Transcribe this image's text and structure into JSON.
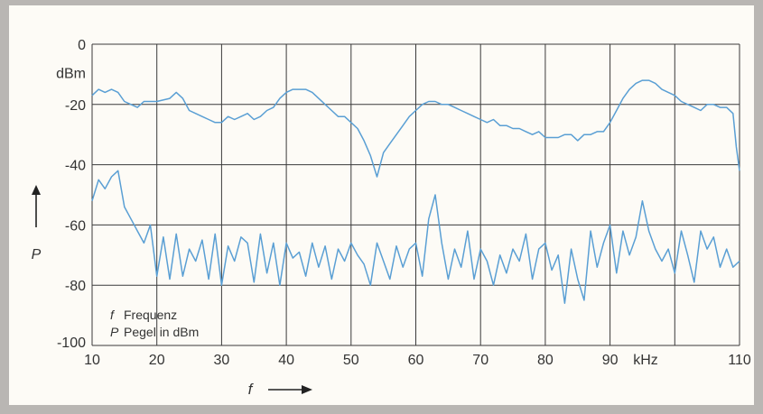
{
  "chart_data": {
    "type": "line",
    "xlim": [
      10,
      110
    ],
    "ylim": [
      -100,
      0
    ],
    "grid": true,
    "x_ticks": [
      "10",
      "20",
      "30",
      "40",
      "50",
      "60",
      "70",
      "80",
      "90",
      "kHz",
      "110"
    ],
    "y_ticks": [
      "0",
      "dBm",
      "-20",
      "-40",
      "-60",
      "-80",
      "-100"
    ],
    "xlabel": "f",
    "ylabel": "P",
    "legend": {
      "placement": "bottom-left",
      "entries": [
        {
          "symbol": "f",
          "text": "Frequenz"
        },
        {
          "symbol": "P",
          "text": "Pegel in dBm"
        }
      ]
    },
    "colors": {
      "line": "#5a9fd4",
      "grid": "#3a3a3a",
      "plot_bg": "#fdfbf6",
      "frame_bg": "#b9b6b3"
    },
    "series": [
      {
        "x": [
          10,
          11,
          12,
          13,
          14,
          15,
          16,
          17,
          18,
          19,
          20,
          22,
          23,
          24,
          25,
          26,
          27,
          28,
          29,
          30,
          31,
          32,
          33,
          34,
          35,
          36,
          37,
          38,
          39,
          40,
          41,
          42,
          43,
          44,
          45,
          46,
          47,
          48,
          49,
          50,
          51,
          52,
          53,
          54,
          55,
          56,
          57,
          58,
          59,
          60,
          61,
          62,
          63,
          64,
          65,
          66,
          67,
          68,
          69,
          70,
          71,
          72,
          73,
          74,
          75,
          76,
          77,
          78,
          79,
          80,
          81,
          82,
          83,
          84,
          85,
          86,
          87,
          88,
          89,
          90,
          91,
          92,
          93,
          94,
          95,
          96,
          97,
          98,
          99,
          100,
          101,
          102,
          103,
          104,
          105,
          106,
          107,
          108,
          109,
          109.5,
          110
        ],
        "y": [
          -17,
          -15,
          -16,
          -15,
          -16,
          -19,
          -20,
          -21,
          -19,
          -19,
          -19,
          -18,
          -16,
          -18,
          -22,
          -23,
          -24,
          -25,
          -26,
          -26,
          -24,
          -25,
          -24,
          -23,
          -25,
          -24,
          -22,
          -21,
          -18,
          -16,
          -15,
          -15,
          -15,
          -16,
          -18,
          -20,
          -22,
          -24,
          -24,
          -26,
          -28,
          -32,
          -37,
          -44,
          -36,
          -33,
          -30,
          -27,
          -24,
          -22,
          -20,
          -19,
          -19,
          -20,
          -20,
          -21,
          -22,
          -23,
          -24,
          -25,
          -26,
          -25,
          -27,
          -27,
          -28,
          -28,
          -29,
          -30,
          -29,
          -31,
          -31,
          -31,
          -30,
          -30,
          -32,
          -30,
          -30,
          -29,
          -29,
          -26,
          -22,
          -18,
          -15,
          -13,
          -12,
          -12,
          -13,
          -15,
          -16,
          -17,
          -19,
          -20,
          -21,
          -22,
          -20,
          -20,
          -21,
          -21,
          -23,
          -34,
          -42
        ]
      },
      {
        "x": [
          10,
          11,
          12,
          13,
          14,
          15,
          16,
          17,
          18,
          19,
          20,
          21,
          22,
          23,
          24,
          25,
          26,
          27,
          28,
          29,
          30,
          31,
          32,
          33,
          34,
          35,
          36,
          37,
          38,
          39,
          40,
          41,
          42,
          43,
          44,
          45,
          46,
          47,
          48,
          49,
          50,
          51,
          52,
          53,
          54,
          55,
          56,
          57,
          58,
          59,
          60,
          61,
          62,
          63,
          64,
          65,
          66,
          67,
          68,
          69,
          70,
          71,
          72,
          73,
          74,
          75,
          76,
          77,
          78,
          79,
          80,
          81,
          82,
          83,
          84,
          85,
          86,
          87,
          88,
          89,
          90,
          91,
          92,
          93,
          94,
          95,
          96,
          97,
          98,
          99,
          100,
          101,
          102,
          103,
          104,
          105,
          106,
          107,
          108,
          109,
          110
        ],
        "y": [
          -52,
          -45,
          -48,
          -44,
          -42,
          -54,
          -58,
          -62,
          -66,
          -60,
          -77,
          -64,
          -78,
          -63,
          -77,
          -68,
          -72,
          -65,
          -78,
          -63,
          -80,
          -67,
          -72,
          -64,
          -66,
          -79,
          -63,
          -76,
          -66,
          -80,
          -66,
          -71,
          -69,
          -77,
          -66,
          -74,
          -67,
          -78,
          -68,
          -72,
          -66,
          -70,
          -73,
          -80,
          -66,
          -72,
          -78,
          -67,
          -74,
          -68,
          -66,
          -77,
          -58,
          -50,
          -66,
          -78,
          -68,
          -74,
          -62,
          -78,
          -68,
          -72,
          -80,
          -70,
          -76,
          -68,
          -72,
          -63,
          -78,
          -68,
          -66,
          -75,
          -70,
          -86,
          -68,
          -78,
          -85,
          -62,
          -74,
          -66,
          -60,
          -76,
          -62,
          -70,
          -64,
          -52,
          -62,
          -68,
          -72,
          -68,
          -76,
          -62,
          -70,
          -79,
          -62,
          -68,
          -64,
          -74,
          -68,
          -74,
          -72
        ]
      }
    ]
  }
}
